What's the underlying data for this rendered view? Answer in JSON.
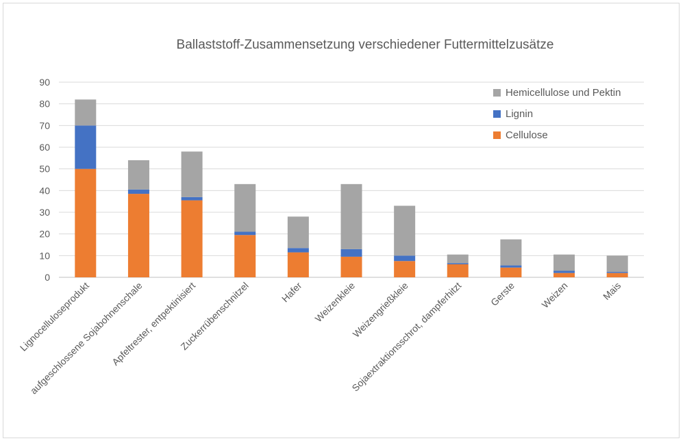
{
  "chart_data": {
    "type": "bar",
    "stacked": true,
    "title": "Ballaststoff-Zusammensetzung verschiedener Futtermittelzusätze",
    "xlabel": "",
    "ylabel": "",
    "ylim": [
      0,
      90
    ],
    "yticks": [
      0,
      10,
      20,
      30,
      40,
      50,
      60,
      70,
      80,
      90
    ],
    "grid": true,
    "legend_position": "top-right",
    "categories": [
      "Lignocelluloseprodukt",
      "aufgeschlossene Sojabohnenschale",
      "Apfeltrester, entpektinisiert",
      "Zuckerrübenschnitzel",
      "Hafer",
      "Weizenkleie",
      "Weizengrießkleie",
      "Sojaextraktionsschrot, dampferhitzt",
      "Gerste",
      "Weizen",
      "Mais"
    ],
    "series": [
      {
        "name": "Cellulose",
        "color": "#ed7d31",
        "values": [
          50,
          38.5,
          35.5,
          19.5,
          11.5,
          9.5,
          7.5,
          6,
          4.5,
          2,
          2
        ]
      },
      {
        "name": "Lignin",
        "color": "#4472c4",
        "values": [
          20,
          2,
          1.5,
          1.5,
          2,
          3.5,
          2.5,
          0.5,
          1,
          1,
          0.5
        ]
      },
      {
        "name": "Hemicellulose und Pektin",
        "color": "#a5a5a5",
        "values": [
          12,
          13.5,
          21,
          22,
          14.5,
          30,
          23,
          4,
          12,
          7.5,
          7.5
        ]
      }
    ],
    "legend_order": [
      "Hemicellulose und Pektin",
      "Lignin",
      "Cellulose"
    ]
  }
}
